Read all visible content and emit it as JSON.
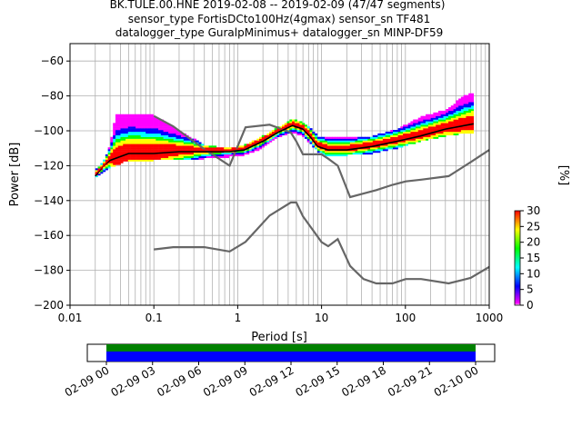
{
  "chart_data": {
    "type": "ppsd",
    "title_lines": [
      "BK.TULE.00.HNE   2019-02-08 -- 2019-02-09  (47/47 segments)",
      "sensor_type FortisDCto100Hz(4gmax) sensor_sn TF481",
      "datalogger_type GuralpMinimus+ datalogger_sn MINP-DF59"
    ],
    "xlabel": "Period [s]",
    "ylabel": "Power [dB]",
    "x_scale": "log",
    "xlim": [
      0.01,
      1000
    ],
    "ylim": [
      -200,
      -50
    ],
    "x_ticks": [
      {
        "value": 0.01,
        "label": "0.01"
      },
      {
        "value": 0.1,
        "label": "0.1"
      },
      {
        "value": 1,
        "label": "1"
      },
      {
        "value": 10,
        "label": "10"
      },
      {
        "value": 100,
        "label": "100"
      },
      {
        "value": 1000,
        "label": "1000"
      }
    ],
    "y_ticks": [
      -60,
      -80,
      -100,
      -120,
      -140,
      -160,
      -180,
      -200
    ],
    "grid": true,
    "colorbar": {
      "label": "[%]",
      "ticks": [
        0,
        5,
        10,
        15,
        20,
        25,
        30
      ],
      "range": [
        0,
        30
      ],
      "colors": [
        "#ffffff",
        "#ff00ff",
        "#0000ff",
        "#00ffff",
        "#00ff00",
        "#ffff00",
        "#ff0000"
      ]
    },
    "noise_models": [
      {
        "name": "NHNM",
        "color": "#666666",
        "points": [
          [
            0.1,
            -91.5
          ],
          [
            0.17,
            -97.4
          ],
          [
            0.4,
            -110.5
          ],
          [
            0.8,
            -120
          ],
          [
            1.24,
            -98
          ],
          [
            2.4,
            -96.5
          ],
          [
            4.3,
            -101
          ],
          [
            5,
            -106
          ],
          [
            6,
            -113.5
          ],
          [
            10,
            -113.5
          ],
          [
            12,
            -116
          ],
          [
            15.6,
            -120
          ],
          [
            21.9,
            -138
          ],
          [
            31.6,
            -136
          ],
          [
            45,
            -134
          ],
          [
            70,
            -131
          ],
          [
            101,
            -129
          ],
          [
            154,
            -128
          ],
          [
            328,
            -126
          ],
          [
            600,
            -118
          ],
          [
            1000,
            -111
          ]
        ]
      },
      {
        "name": "NLNM",
        "color": "#666666",
        "points": [
          [
            0.1,
            -168
          ],
          [
            0.17,
            -166.7
          ],
          [
            0.4,
            -166.7
          ],
          [
            0.8,
            -169.2
          ],
          [
            1.24,
            -163.7
          ],
          [
            2.4,
            -148.6
          ],
          [
            4.3,
            -141.1
          ],
          [
            5,
            -141.1
          ],
          [
            6,
            -149
          ],
          [
            10,
            -163.8
          ],
          [
            12,
            -166.2
          ],
          [
            15.6,
            -162.1
          ],
          [
            21.9,
            -177.5
          ],
          [
            31.6,
            -185
          ],
          [
            45,
            -187.5
          ],
          [
            70,
            -187.5
          ],
          [
            101,
            -185
          ],
          [
            154,
            -185
          ],
          [
            328,
            -187.5
          ],
          [
            600,
            -184.4
          ],
          [
            1000,
            -178
          ]
        ]
      }
    ],
    "mean_curve": {
      "color": "#000000",
      "points": [
        [
          0.02,
          -126
        ],
        [
          0.025,
          -120
        ],
        [
          0.03,
          -117
        ],
        [
          0.05,
          -113
        ],
        [
          0.1,
          -113
        ],
        [
          0.2,
          -112
        ],
        [
          0.4,
          -112
        ],
        [
          0.8,
          -112
        ],
        [
          1.2,
          -111
        ],
        [
          2,
          -106
        ],
        [
          3,
          -101
        ],
        [
          4.5,
          -97
        ],
        [
          6,
          -99
        ],
        [
          7.5,
          -104
        ],
        [
          9,
          -109
        ],
        [
          12,
          -111
        ],
        [
          20,
          -111
        ],
        [
          40,
          -109
        ],
        [
          80,
          -106
        ],
        [
          150,
          -103
        ],
        [
          300,
          -99
        ],
        [
          650,
          -96
        ]
      ]
    },
    "mode_curve": {
      "color": "#ff0000",
      "points": [
        [
          0.02,
          -125
        ],
        [
          0.025,
          -120
        ],
        [
          0.03,
          -116
        ],
        [
          0.05,
          -112
        ],
        [
          0.1,
          -112
        ],
        [
          0.2,
          -111
        ],
        [
          0.4,
          -111
        ],
        [
          0.8,
          -111
        ],
        [
          1.2,
          -110
        ],
        [
          2,
          -105
        ],
        [
          3,
          -100
        ],
        [
          4.5,
          -96
        ],
        [
          6,
          -98
        ],
        [
          7.5,
          -103
        ],
        [
          9,
          -108
        ],
        [
          12,
          -110
        ],
        [
          20,
          -110
        ],
        [
          40,
          -108
        ],
        [
          80,
          -105
        ],
        [
          150,
          -102
        ],
        [
          300,
          -98
        ],
        [
          650,
          -95
        ]
      ]
    },
    "distribution_envelope": {
      "upper": [
        [
          0.02,
          -122
        ],
        [
          0.025,
          -118
        ],
        [
          0.03,
          -108
        ],
        [
          0.035,
          -91
        ],
        [
          0.05,
          -90
        ],
        [
          0.1,
          -91
        ],
        [
          0.2,
          -100
        ],
        [
          0.4,
          -108
        ],
        [
          0.8,
          -110
        ],
        [
          1.2,
          -108
        ],
        [
          2,
          -103
        ],
        [
          3,
          -98
        ],
        [
          4.5,
          -93
        ],
        [
          6,
          -95
        ],
        [
          7.5,
          -99
        ],
        [
          9,
          -103
        ],
        [
          12,
          -104
        ],
        [
          20,
          -104
        ],
        [
          40,
          -103
        ],
        [
          80,
          -99
        ],
        [
          150,
          -92
        ],
        [
          300,
          -88
        ],
        [
          500,
          -80
        ],
        [
          650,
          -78
        ]
      ],
      "lower": [
        [
          0.02,
          -127
        ],
        [
          0.025,
          -124
        ],
        [
          0.03,
          -121
        ],
        [
          0.05,
          -117
        ],
        [
          0.1,
          -117
        ],
        [
          0.2,
          -116
        ],
        [
          0.4,
          -116
        ],
        [
          0.8,
          -115
        ],
        [
          1.2,
          -114
        ],
        [
          2,
          -110
        ],
        [
          3,
          -104
        ],
        [
          4.5,
          -101
        ],
        [
          6,
          -103
        ],
        [
          7.5,
          -108
        ],
        [
          9,
          -112
        ],
        [
          12,
          -115
        ],
        [
          20,
          -114
        ],
        [
          40,
          -113
        ],
        [
          80,
          -110
        ],
        [
          150,
          -106
        ],
        [
          300,
          -103
        ],
        [
          650,
          -101
        ]
      ]
    },
    "time_axis": {
      "labels": [
        "02-09 00",
        "02-09 03",
        "02-09 06",
        "02-09 09",
        "02-09 12",
        "02-09 15",
        "02-09 18",
        "02-09 21",
        "02-10 00"
      ],
      "coverage_hours": [
        0,
        24
      ],
      "bar_colors": {
        "top": "#008000",
        "bottom": "#0000ff"
      }
    }
  }
}
